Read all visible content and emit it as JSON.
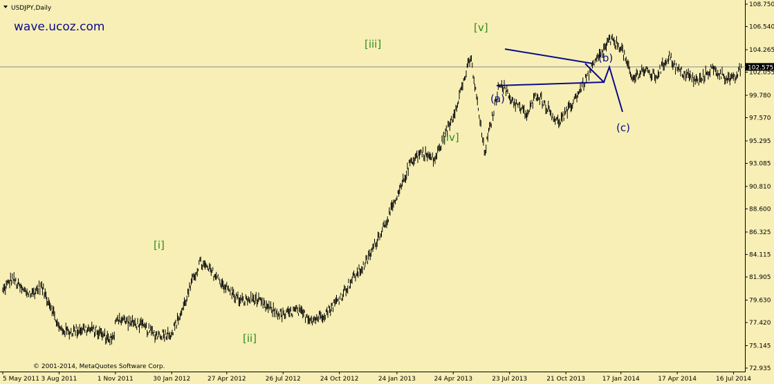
{
  "symbol_title": "USDJPY,Daily",
  "watermark": "wave.ucoz.com",
  "copyright": "© 2001-2014, MetaQuotes Software Corp.",
  "current_price": "102.575",
  "colors": {
    "background": "#f7efb6",
    "price": "#000000",
    "wave_green": "#2e8b1e",
    "wave_blue": "#0a0a8c",
    "price_line": "#8c8c8c",
    "current_price_bg": "#000000"
  },
  "chart_data": {
    "type": "line",
    "title": "USDJPY,Daily",
    "ylim": [
      72.0,
      109.0
    ],
    "y_ticks": [
      "108.750",
      "106.540",
      "104.265",
      "102.055",
      "99.780",
      "97.570",
      "95.295",
      "93.085",
      "90.810",
      "88.600",
      "86.325",
      "84.115",
      "81.905",
      "79.630",
      "77.420",
      "75.145",
      "72.935"
    ],
    "x_ticks": [
      "5 May 2011",
      "3 Aug 2011",
      "1 Nov 2011",
      "30 Jan 2012",
      "27 Apr 2012",
      "26 Jul 2012",
      "24 Oct 2012",
      "24 Jan 2013",
      "24 Apr 2013",
      "23 Jul 2013",
      "21 Oct 2013",
      "17 Jan 2014",
      "17 Apr 2014",
      "16 Jul 2014"
    ],
    "series": [
      {
        "x": [
          "2011-05-05",
          "2011-05-20",
          "2011-06-05",
          "2011-06-20",
          "2011-07-05",
          "2011-07-20",
          "2011-08-03",
          "2011-08-20",
          "2011-09-10",
          "2011-10-01",
          "2011-10-20",
          "2011-10-31",
          "2011-11-01",
          "2011-11-20",
          "2011-12-10",
          "2012-01-05",
          "2012-01-30",
          "2012-02-15",
          "2012-03-05",
          "2012-03-15",
          "2012-04-05",
          "2012-04-27",
          "2012-05-20",
          "2012-06-10",
          "2012-06-25",
          "2012-07-26",
          "2012-08-15",
          "2012-09-13",
          "2012-10-05",
          "2012-10-24",
          "2012-11-15",
          "2012-12-05",
          "2012-12-25",
          "2013-01-24",
          "2013-02-15",
          "2013-03-05",
          "2013-03-25",
          "2013-04-24",
          "2013-05-22",
          "2013-06-13",
          "2013-07-08",
          "2013-07-23",
          "2013-08-20",
          "2013-09-05",
          "2013-10-08",
          "2013-10-21",
          "2013-11-15",
          "2013-12-05",
          "2013-12-30",
          "2014-01-17",
          "2014-02-04",
          "2014-02-20",
          "2014-03-14",
          "2014-04-04",
          "2014-04-17",
          "2014-05-21",
          "2014-06-10",
          "2014-07-16",
          "2014-07-29"
        ],
        "values": [
          80.5,
          81.8,
          80.6,
          80.2,
          81.0,
          79.2,
          76.8,
          76.5,
          76.8,
          76.6,
          75.9,
          75.8,
          78.0,
          77.5,
          77.2,
          76.2,
          76.4,
          78.5,
          81.8,
          83.3,
          82.3,
          80.8,
          79.5,
          79.8,
          79.1,
          78.1,
          78.6,
          77.7,
          78.5,
          79.8,
          81.8,
          83.2,
          85.8,
          89.6,
          93.3,
          94.2,
          93.4,
          97.8,
          103.5,
          94.1,
          101.2,
          99.6,
          97.8,
          100.0,
          97.1,
          97.9,
          100.6,
          102.8,
          105.2,
          104.6,
          101.3,
          102.3,
          101.6,
          103.7,
          102.3,
          101.1,
          102.4,
          101.2,
          102.575
        ]
      }
    ]
  },
  "wave_labels": [
    {
      "text": "[i]",
      "color": "green"
    },
    {
      "text": "[ii]",
      "color": "green"
    },
    {
      "text": "[iii]",
      "color": "green"
    },
    {
      "text": "[iv]",
      "color": "green"
    },
    {
      "text": "[v]",
      "color": "green"
    },
    {
      "text": "(a)",
      "color": "blue"
    },
    {
      "text": "(b)",
      "color": "blue"
    },
    {
      "text": "(c)",
      "color": "blue"
    }
  ]
}
